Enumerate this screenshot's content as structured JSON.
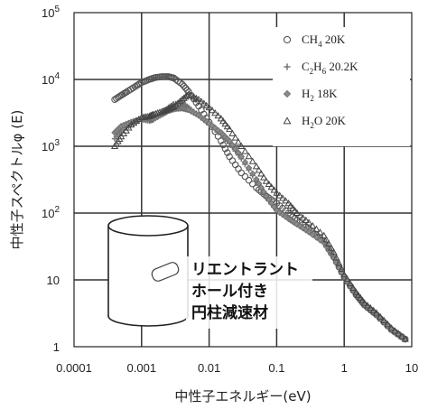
{
  "chart_data": {
    "type": "scatter",
    "scale": "log-log",
    "xlabel": "中性子エネルギー(eV)",
    "ylabel": "中性子スペクトルφ (E)",
    "xlim": [
      0.0001,
      10
    ],
    "ylim": [
      1,
      100000
    ],
    "x_ticks": [
      "0.0001",
      "0.001",
      "0.01",
      "0.1",
      "1",
      "10"
    ],
    "y_ticks": [
      {
        "base": "1",
        "exp": ""
      },
      {
        "base": "10",
        "exp": ""
      },
      {
        "base": "10",
        "exp": "2"
      },
      {
        "base": "10",
        "exp": "3"
      },
      {
        "base": "10",
        "exp": "4"
      },
      {
        "base": "10",
        "exp": "5"
      }
    ],
    "grid": true,
    "legend_position": "top-right",
    "inset_label": [
      "リエントラント",
      "ホール付き",
      "円柱減速材"
    ],
    "series": [
      {
        "name": "CH4 20K",
        "legend": {
          "pre": "CH",
          "sub": "4",
          "post": " 20K"
        },
        "marker": "circle",
        "x": [
          0.0004,
          0.0005,
          0.0006,
          0.0008,
          0.001,
          0.0013,
          0.0016,
          0.002,
          0.0025,
          0.003,
          0.004,
          0.005,
          0.007,
          0.01,
          0.015,
          0.02,
          0.03,
          0.05,
          0.07,
          0.1,
          0.15,
          0.2,
          0.3,
          0.5,
          0.7,
          1,
          1.5,
          2,
          3,
          5,
          8
        ],
        "y": [
          5000,
          5800,
          6500,
          7800,
          9000,
          10000,
          10700,
          11000,
          11000,
          10500,
          8500,
          6500,
          4000,
          2300,
          1200,
          700,
          400,
          240,
          180,
          140,
          100,
          78,
          58,
          38,
          22,
          11,
          6,
          4.2,
          3,
          1.8,
          1.3
        ]
      },
      {
        "name": "C2H6 20.2K",
        "legend": {
          "pre": "C",
          "sub": "2",
          "mid": "H",
          "sub2": "6",
          "post": " 20.2K"
        },
        "marker": "plus",
        "x": [
          0.0004,
          0.0005,
          0.0007,
          0.001,
          0.0013,
          0.0015,
          0.002,
          0.0025,
          0.003,
          0.004,
          0.005,
          0.007,
          0.01,
          0.015,
          0.02,
          0.03,
          0.05,
          0.07,
          0.1,
          0.15,
          0.2,
          0.3,
          0.5,
          0.7,
          1,
          1.5,
          2,
          3,
          5,
          8
        ],
        "y": [
          1300,
          1700,
          2100,
          2500,
          2400,
          2500,
          3000,
          3800,
          4300,
          4400,
          3800,
          2900,
          2100,
          1500,
          1100,
          650,
          300,
          170,
          110,
          85,
          70,
          55,
          38,
          22,
          11,
          6,
          4.2,
          3,
          1.8,
          1.3
        ]
      },
      {
        "name": "H2 18K",
        "legend": {
          "pre": "H",
          "sub": "2",
          "post": " 18K"
        },
        "marker": "diamond",
        "x": [
          0.0004,
          0.0005,
          0.0007,
          0.001,
          0.0013,
          0.0015,
          0.002,
          0.0025,
          0.003,
          0.004,
          0.005,
          0.007,
          0.01,
          0.015,
          0.02,
          0.03,
          0.05,
          0.07,
          0.1,
          0.15,
          0.2,
          0.3,
          0.5,
          0.7,
          1,
          1.5,
          2,
          3,
          5,
          8
        ],
        "y": [
          1600,
          2000,
          2300,
          2600,
          2500,
          2600,
          3000,
          3400,
          3600,
          3700,
          3500,
          2900,
          2200,
          1600,
          1200,
          700,
          320,
          180,
          110,
          82,
          68,
          52,
          36,
          21,
          11,
          6,
          4.2,
          3,
          1.8,
          1.3
        ]
      },
      {
        "name": "H2O 20K",
        "legend": {
          "pre": "H",
          "sub": "2",
          "post": "O 20K"
        },
        "marker": "triangle",
        "x": [
          0.0004,
          0.0005,
          0.0007,
          0.001,
          0.0013,
          0.0015,
          0.002,
          0.0025,
          0.003,
          0.004,
          0.005,
          0.007,
          0.01,
          0.015,
          0.02,
          0.03,
          0.05,
          0.07,
          0.1,
          0.15,
          0.2,
          0.3,
          0.5,
          0.7,
          1,
          1.5,
          2,
          3,
          5,
          8
        ],
        "y": [
          1000,
          1400,
          2100,
          2700,
          2800,
          3000,
          3300,
          3600,
          3900,
          5000,
          6000,
          5000,
          3800,
          2600,
          1800,
          1000,
          500,
          300,
          200,
          140,
          100,
          72,
          46,
          26,
          12,
          6.5,
          4.5,
          3.2,
          1.9,
          1.3
        ]
      }
    ]
  }
}
